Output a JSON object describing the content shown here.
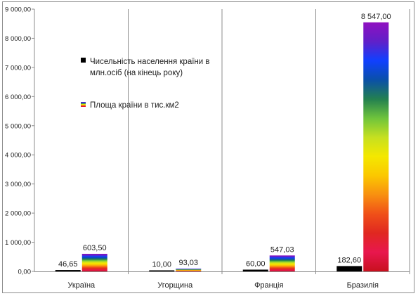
{
  "chart_data": {
    "type": "bar",
    "title": "",
    "xlabel": "",
    "ylabel": "",
    "ylim": [
      0,
      9000
    ],
    "y_ticks": [
      "0,00",
      "1 000,00",
      "2 000,00",
      "3 000,00",
      "4 000,00",
      "5 000,00",
      "6 000,00",
      "7 000,00",
      "8 000,00",
      "9 000,00"
    ],
    "categories": [
      "Україна",
      "Угорщина",
      "Франція",
      "Бразилія"
    ],
    "grid": "vertical category separators",
    "legend_position": "upper-left inside plot",
    "series": [
      {
        "name_lines": [
          "Чисельність населення країни в",
          "млн.осіб (на кінець року)"
        ],
        "values": [
          46.65,
          10.0,
          60.0,
          182.6
        ],
        "labels": [
          "46,65",
          "10,00",
          "60,00",
          "182,60"
        ],
        "color": "#000000"
      },
      {
        "name_lines": [
          "Площа країни в тис.км2"
        ],
        "values": [
          603.5,
          93.03,
          547.03,
          8547.0
        ],
        "labels": [
          "603,50",
          "93,03",
          "547,03",
          "8 547,00"
        ],
        "fill": "rainbow-gradient",
        "gradient_colors": [
          "#c8101e",
          "#e8174e",
          "#e02820",
          "#f05018",
          "#f89010",
          "#fbc800",
          "#f4e800",
          "#c6e020",
          "#6fc43c",
          "#238050",
          "#0a50a8",
          "#1040ff",
          "#6020c8",
          "#9010c0"
        ]
      }
    ]
  }
}
